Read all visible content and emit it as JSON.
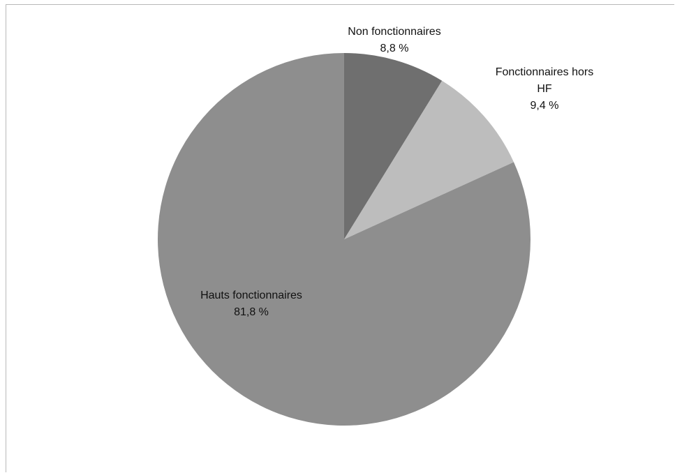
{
  "chart_data": {
    "type": "pie",
    "start_angle_deg": 0,
    "direction": "clockwise",
    "slices": [
      {
        "label_lines": [
          "Non fonctionnaires"
        ],
        "value": 8.8,
        "value_label": "8,8 %",
        "color": "#6f6f6f"
      },
      {
        "label_lines": [
          "Fonctionnaires hors",
          "HF"
        ],
        "value": 9.4,
        "value_label": "9,4 %",
        "color": "#bdbdbd"
      },
      {
        "label_lines": [
          "Hauts fonctionnaires"
        ],
        "value": 81.8,
        "value_label": "81,8 %",
        "color": "#8e8e8e"
      }
    ]
  }
}
